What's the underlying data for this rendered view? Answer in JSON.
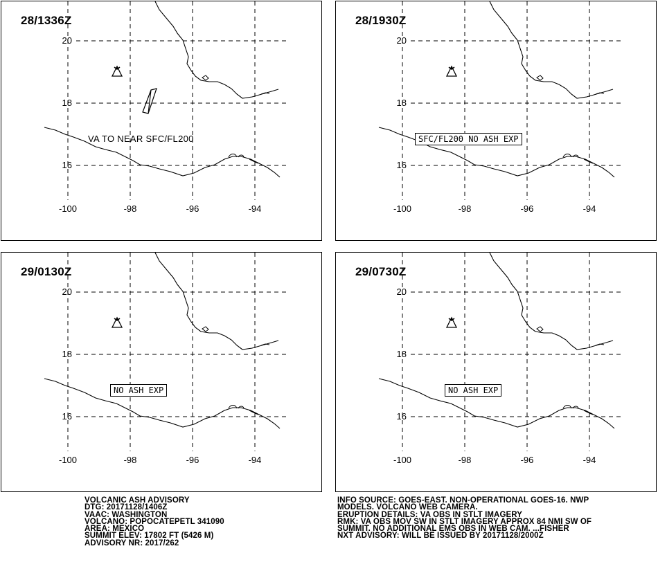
{
  "panels": [
    {
      "time": "28/1336Z",
      "annotation": "VA TO NEAR SFC/FL200",
      "boxed": ""
    },
    {
      "time": "28/1930Z",
      "annotation": "",
      "boxed": "SFC/FL200 NO ASH EXP"
    },
    {
      "time": "29/0130Z",
      "annotation": "",
      "boxed": "NO ASH EXP"
    },
    {
      "time": "29/0730Z",
      "annotation": "",
      "boxed": "NO ASH EXP"
    }
  ],
  "axes": {
    "y_labels": [
      "20",
      "18",
      "16"
    ],
    "x_labels": [
      "-100",
      "-98",
      "-96",
      "-94"
    ]
  },
  "advisory_left": [
    "VOLCANIC ASH ADVISORY",
    "DTG: 20171128/1406Z",
    "VAAC: WASHINGTON",
    "VOLCANO: POPOCATEPETL 341090",
    "AREA: MEXICO",
    "SUMMIT ELEV: 17802 FT (5426 M)",
    "ADVISORY NR: 2017/262"
  ],
  "advisory_right": [
    "INFO SOURCE: GOES-EAST. NON-OPERATIONAL GOES-16. NWP",
    "MODELS. VOLCANO WEB CAMERA.",
    "ERUPTION DETAILS: VA OBS IN STLT IMAGERY",
    "RMK: VA OBS MOV SW IN STLT IMAGERY APPROX 84 NMI SW OF",
    "SUMMIT. NO ADDITIONAL EMS OBS IN WEB CAM. ...FISHER",
    "NXT ADVISORY: WILL BE ISSUED BY 20171128/2000Z"
  ],
  "symbols": {
    "volcano": "volcano-icon",
    "ash_polygon": "ash-cloud-polygon"
  },
  "colors": {
    "line": "#000000",
    "background": "#ffffff"
  }
}
